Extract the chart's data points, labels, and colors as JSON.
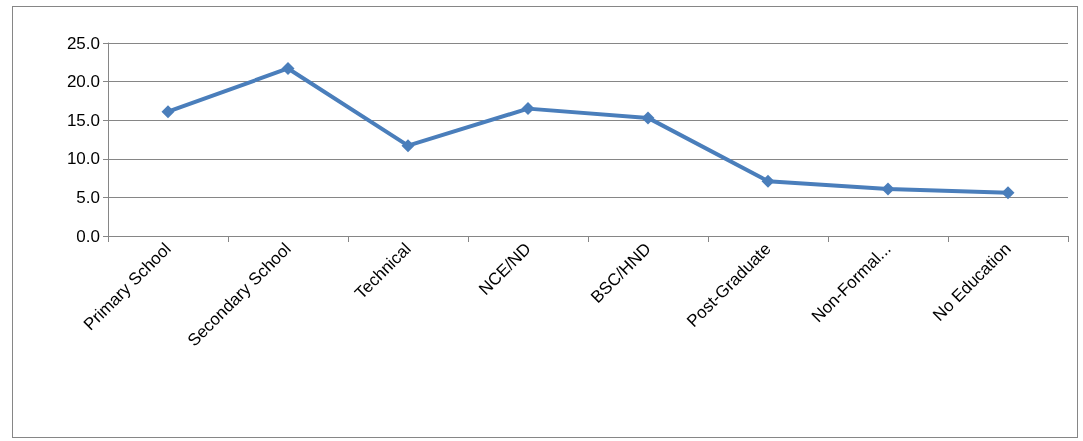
{
  "chart_data": {
    "type": "line",
    "categories": [
      "Primary School",
      "Secondary School",
      "Technical",
      "NCE/ND",
      "BSC/HND",
      "Post-Graduate",
      "Non-Formal...",
      "No Education"
    ],
    "series": [
      {
        "color": "#4a7ebb",
        "values": [
          16.1,
          21.7,
          11.7,
          16.5,
          15.3,
          7.1,
          6.1,
          5.6
        ]
      }
    ],
    "ylim": [
      0,
      25
    ],
    "yticks": [
      {
        "value": 0,
        "label": "0.0"
      },
      {
        "value": 5,
        "label": "5.0"
      },
      {
        "value": 10,
        "label": "10.0"
      },
      {
        "value": 15,
        "label": "15.0"
      },
      {
        "value": 20,
        "label": "20.0"
      },
      {
        "value": 25,
        "label": "25.0"
      }
    ],
    "grid": "y",
    "marker": "diamond",
    "line_style": "solid"
  }
}
